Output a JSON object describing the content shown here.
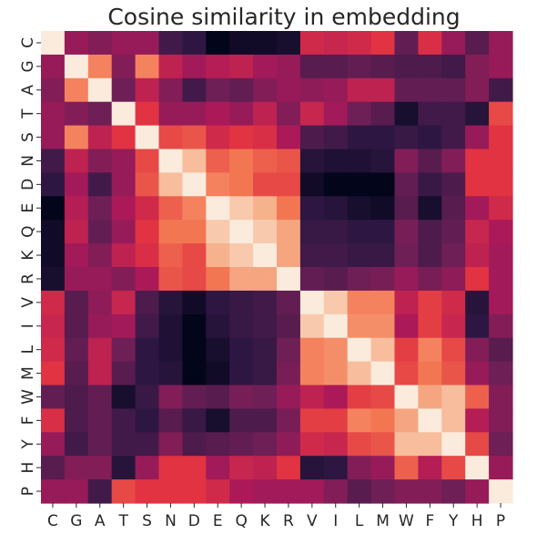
{
  "chart_data": {
    "type": "heatmap",
    "title": "Cosine similarity in embedding",
    "xlabel": "",
    "ylabel": "",
    "categories": [
      "C",
      "G",
      "A",
      "T",
      "S",
      "N",
      "D",
      "E",
      "Q",
      "K",
      "R",
      "V",
      "I",
      "L",
      "M",
      "W",
      "F",
      "Y",
      "H",
      "P"
    ],
    "colormap": "rocket",
    "vmin": -1,
    "vmax": 1,
    "colorbar": false,
    "grid": false,
    "matrix": [
      [
        1.0,
        -0.2,
        -0.3,
        -0.2,
        -0.2,
        -0.6,
        -0.7,
        -1.0,
        -0.9,
        -0.9,
        -0.85,
        0.1,
        0.05,
        0.1,
        0.2,
        -0.45,
        0.15,
        -0.2,
        -0.5,
        -0.2
      ],
      [
        -0.2,
        1.0,
        0.55,
        -0.3,
        0.55,
        0.0,
        -0.15,
        -0.05,
        0.0,
        -0.15,
        -0.2,
        -0.5,
        -0.5,
        -0.45,
        -0.5,
        -0.55,
        -0.55,
        -0.6,
        -0.3,
        -0.2
      ],
      [
        -0.3,
        0.55,
        1.0,
        -0.4,
        0.0,
        -0.3,
        -0.6,
        -0.4,
        -0.45,
        -0.3,
        -0.2,
        -0.25,
        -0.2,
        0.0,
        0.0,
        -0.45,
        -0.45,
        -0.45,
        -0.3,
        -0.6
      ],
      [
        -0.2,
        -0.3,
        -0.4,
        1.0,
        0.2,
        -0.2,
        -0.2,
        -0.1,
        -0.2,
        0.0,
        -0.3,
        0.05,
        -0.15,
        -0.4,
        -0.5,
        -0.85,
        -0.6,
        -0.6,
        -0.75,
        0.3
      ],
      [
        -0.2,
        0.55,
        0.0,
        0.2,
        1.0,
        0.3,
        0.35,
        0.1,
        0.2,
        0.15,
        -0.1,
        -0.55,
        -0.6,
        -0.7,
        -0.7,
        -0.65,
        -0.7,
        -0.6,
        -0.2,
        0.2
      ],
      [
        -0.6,
        0.0,
        -0.3,
        -0.2,
        0.3,
        1.0,
        0.8,
        0.4,
        0.5,
        0.4,
        0.35,
        -0.75,
        -0.8,
        -0.8,
        -0.75,
        -0.3,
        -0.5,
        -0.3,
        0.2,
        0.2
      ],
      [
        -0.7,
        -0.15,
        -0.6,
        -0.2,
        0.35,
        0.8,
        1.0,
        0.55,
        0.5,
        0.3,
        0.3,
        -0.9,
        -1.0,
        -1.0,
        -1.0,
        -0.45,
        -0.65,
        -0.55,
        0.2,
        0.2
      ],
      [
        -1.0,
        -0.05,
        -0.4,
        -0.1,
        0.1,
        0.4,
        0.55,
        1.0,
        0.85,
        0.75,
        0.5,
        -0.7,
        -0.75,
        -0.85,
        -0.9,
        -0.5,
        -0.85,
        -0.5,
        -0.15,
        0.1
      ],
      [
        -0.9,
        0.0,
        -0.45,
        -0.2,
        0.2,
        0.5,
        0.5,
        0.85,
        1.0,
        0.85,
        0.7,
        -0.65,
        -0.65,
        -0.7,
        -0.7,
        -0.35,
        -0.55,
        -0.45,
        0.05,
        -0.1
      ],
      [
        -0.9,
        -0.15,
        -0.3,
        0.0,
        0.15,
        0.4,
        0.3,
        0.75,
        0.85,
        1.0,
        0.7,
        -0.6,
        -0.6,
        -0.65,
        -0.65,
        -0.4,
        -0.55,
        -0.4,
        0.0,
        -0.15
      ],
      [
        -0.85,
        -0.2,
        -0.2,
        -0.3,
        -0.1,
        0.35,
        0.3,
        0.5,
        0.7,
        0.7,
        1.0,
        -0.45,
        -0.5,
        -0.4,
        -0.35,
        -0.2,
        -0.35,
        -0.25,
        0.2,
        -0.15
      ],
      [
        0.1,
        -0.5,
        -0.25,
        0.05,
        -0.55,
        -0.75,
        -0.9,
        -0.7,
        -0.65,
        -0.6,
        -0.45,
        1.0,
        0.85,
        0.55,
        0.55,
        0.0,
        0.25,
        0.1,
        -0.75,
        -0.15
      ],
      [
        0.05,
        -0.5,
        -0.2,
        -0.15,
        -0.6,
        -0.8,
        -1.0,
        -0.75,
        -0.65,
        -0.6,
        -0.5,
        0.85,
        1.0,
        0.6,
        0.6,
        -0.1,
        0.25,
        0.05,
        -0.7,
        -0.3
      ],
      [
        0.1,
        -0.45,
        0.0,
        -0.4,
        -0.7,
        -0.8,
        -1.0,
        -0.85,
        -0.7,
        -0.65,
        -0.4,
        0.55,
        0.6,
        1.0,
        0.8,
        0.25,
        0.55,
        0.3,
        -0.3,
        -0.5
      ],
      [
        0.2,
        -0.5,
        0.0,
        -0.5,
        -0.7,
        -0.75,
        -1.0,
        -0.9,
        -0.7,
        -0.65,
        -0.35,
        0.55,
        0.6,
        0.8,
        1.0,
        0.3,
        0.5,
        0.35,
        -0.2,
        -0.4
      ],
      [
        -0.45,
        -0.55,
        -0.45,
        -0.85,
        -0.65,
        -0.3,
        -0.45,
        -0.5,
        -0.35,
        -0.4,
        -0.2,
        0.0,
        -0.1,
        0.25,
        0.3,
        1.0,
        0.7,
        0.8,
        0.4,
        -0.3
      ],
      [
        0.15,
        -0.55,
        -0.45,
        -0.6,
        -0.7,
        -0.5,
        -0.65,
        -0.85,
        -0.55,
        -0.55,
        -0.35,
        0.25,
        0.25,
        0.55,
        0.5,
        0.7,
        1.0,
        0.8,
        -0.05,
        -0.3
      ],
      [
        -0.2,
        -0.6,
        -0.45,
        -0.6,
        -0.6,
        -0.3,
        -0.55,
        -0.5,
        -0.45,
        -0.4,
        -0.25,
        0.1,
        0.05,
        0.3,
        0.35,
        0.8,
        0.8,
        1.0,
        0.3,
        -0.4
      ],
      [
        -0.5,
        -0.3,
        -0.3,
        -0.75,
        -0.2,
        0.2,
        0.2,
        -0.15,
        0.05,
        0.0,
        0.2,
        -0.75,
        -0.7,
        -0.3,
        -0.2,
        0.4,
        -0.05,
        0.3,
        1.0,
        -0.2
      ],
      [
        -0.2,
        -0.2,
        -0.6,
        0.3,
        0.2,
        0.2,
        0.2,
        0.1,
        -0.1,
        -0.15,
        -0.15,
        -0.15,
        -0.3,
        -0.5,
        -0.4,
        -0.3,
        -0.3,
        -0.4,
        -0.2,
        1.0
      ]
    ]
  }
}
